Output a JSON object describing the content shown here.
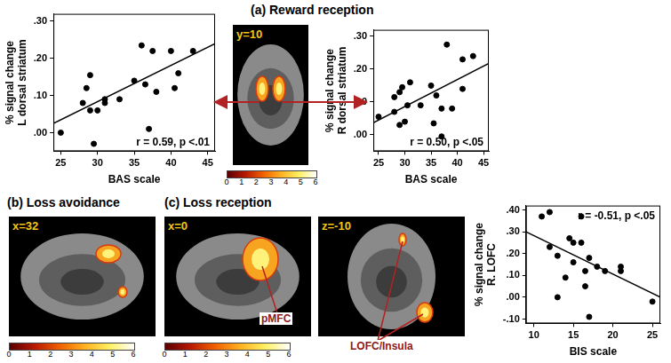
{
  "chart_data": [
    {
      "type": "scatter",
      "x_label": "BAS scale",
      "y_label": [
        "% signal change",
        "L dorsal striatum"
      ],
      "annotation": "r = 0.59, p <.01",
      "color": "#000000",
      "marker": "circle",
      "grid": false,
      "x": [
        25,
        28,
        28.5,
        29,
        29,
        29.5,
        30,
        31,
        31,
        33,
        35,
        36,
        36.5,
        37,
        37.5,
        38,
        40,
        40.5,
        41,
        43
      ],
      "values": [
        0.0,
        0.08,
        0.12,
        0.155,
        0.06,
        -0.03,
        0.06,
        0.08,
        0.09,
        0.09,
        0.14,
        0.235,
        0.13,
        0.01,
        0.22,
        0.11,
        0.22,
        0.12,
        0.16,
        0.22
      ],
      "fit": {
        "x": [
          24,
          46
        ],
        "values": [
          0.025,
          0.24
        ]
      },
      "xlim": [
        24,
        46
      ],
      "xticks": [
        25,
        30,
        35,
        40,
        45
      ],
      "ylim": [
        -0.05,
        0.32
      ],
      "yticks": [
        {
          "value": 0,
          "label": ".00"
        },
        {
          "value": 0.1,
          "label": ".10"
        },
        {
          "value": 0.2,
          "label": ".20"
        },
        {
          "value": 0.3,
          "label": ".30"
        }
      ]
    },
    {
      "type": "scatter",
      "x_label": "BAS scale",
      "y_label": [
        "% signal change",
        "R dorsal striatum"
      ],
      "annotation": "r = 0.50, p <.05",
      "color": "#000000",
      "marker": "circle",
      "grid": false,
      "x": [
        25,
        28,
        28,
        29,
        29.5,
        29,
        30,
        30.5,
        31,
        33,
        35,
        35.5,
        36,
        37,
        37,
        38,
        39,
        41,
        41,
        43
      ],
      "values": [
        0.055,
        0.07,
        0.115,
        0.13,
        0.145,
        0.03,
        0.04,
        0.09,
        0.16,
        0.09,
        0.15,
        0.035,
        0.12,
        -0.005,
        0.08,
        0.275,
        0.08,
        0.23,
        0.14,
        0.24
      ],
      "fit": {
        "x": [
          24,
          46
        ],
        "values": [
          0.037,
          0.218
        ]
      },
      "xlim": [
        24,
        46
      ],
      "xticks": [
        25,
        30,
        35,
        40,
        45
      ],
      "ylim": [
        -0.05,
        0.32
      ],
      "yticks": [
        {
          "value": 0,
          "label": ".00"
        },
        {
          "value": 0.1,
          "label": ".10"
        },
        {
          "value": 0.2,
          "label": ".20"
        },
        {
          "value": 0.3,
          "label": ".30"
        }
      ]
    },
    {
      "type": "scatter",
      "x_label": "BIS scale",
      "y_label": [
        "% signal change",
        "R. LOFC"
      ],
      "annotation": "r = -0.51, p <.05",
      "color": "#000000",
      "marker": "circle",
      "grid": false,
      "x": [
        11,
        12,
        12,
        13,
        13,
        14,
        14.5,
        15,
        15,
        16,
        16,
        16.5,
        16.5,
        17,
        17,
        18,
        19,
        21,
        21,
        25
      ],
      "values": [
        0.37,
        0.39,
        0.23,
        0.19,
        0.0,
        0.09,
        0.27,
        0.16,
        0.25,
        0.37,
        0.25,
        0.12,
        0.05,
        -0.09,
        0.18,
        0.14,
        0.12,
        0.14,
        0.12,
        -0.02
      ],
      "fit": {
        "x": [
          9,
          26
        ],
        "values": [
          0.3,
          0.0
        ]
      },
      "xlim": [
        9,
        26
      ],
      "xticks": [
        10,
        15,
        20,
        25
      ],
      "ylim": [
        -0.12,
        0.42
      ],
      "yticks": [
        {
          "value": -0.1,
          "label": "-.10"
        },
        {
          "value": 0,
          "label": ".00"
        },
        {
          "value": 0.1,
          "label": ".10"
        },
        {
          "value": 0.2,
          "label": ".20"
        },
        {
          "value": 0.3,
          "label": ".30"
        },
        {
          "value": 0.4,
          "label": ".40"
        }
      ]
    }
  ],
  "panels": [
    {
      "title": "(a) Reward reception",
      "images": [
        {
          "label": "y=10"
        }
      ],
      "colorbar_lim": [
        0,
        6
      ],
      "colorbar_ticks": [
        0,
        1,
        2,
        3,
        4,
        5,
        6
      ]
    },
    {
      "title": "(b) Loss avoidance",
      "images": [
        {
          "label": "x=32"
        }
      ],
      "colorbar_lim": [
        0,
        6
      ],
      "colorbar_ticks": [
        0,
        1,
        2,
        3,
        4,
        5,
        6
      ]
    },
    {
      "title": "(c) Loss reception",
      "images": [
        {
          "label": "x=0",
          "callout": "pMFC"
        },
        {
          "label": "z=-10",
          "callout": "LOFC/Insula"
        }
      ],
      "colorbar_lim": [
        0,
        6
      ],
      "colorbar_ticks": [
        0,
        1,
        2,
        3,
        4,
        5,
        6
      ]
    }
  ]
}
